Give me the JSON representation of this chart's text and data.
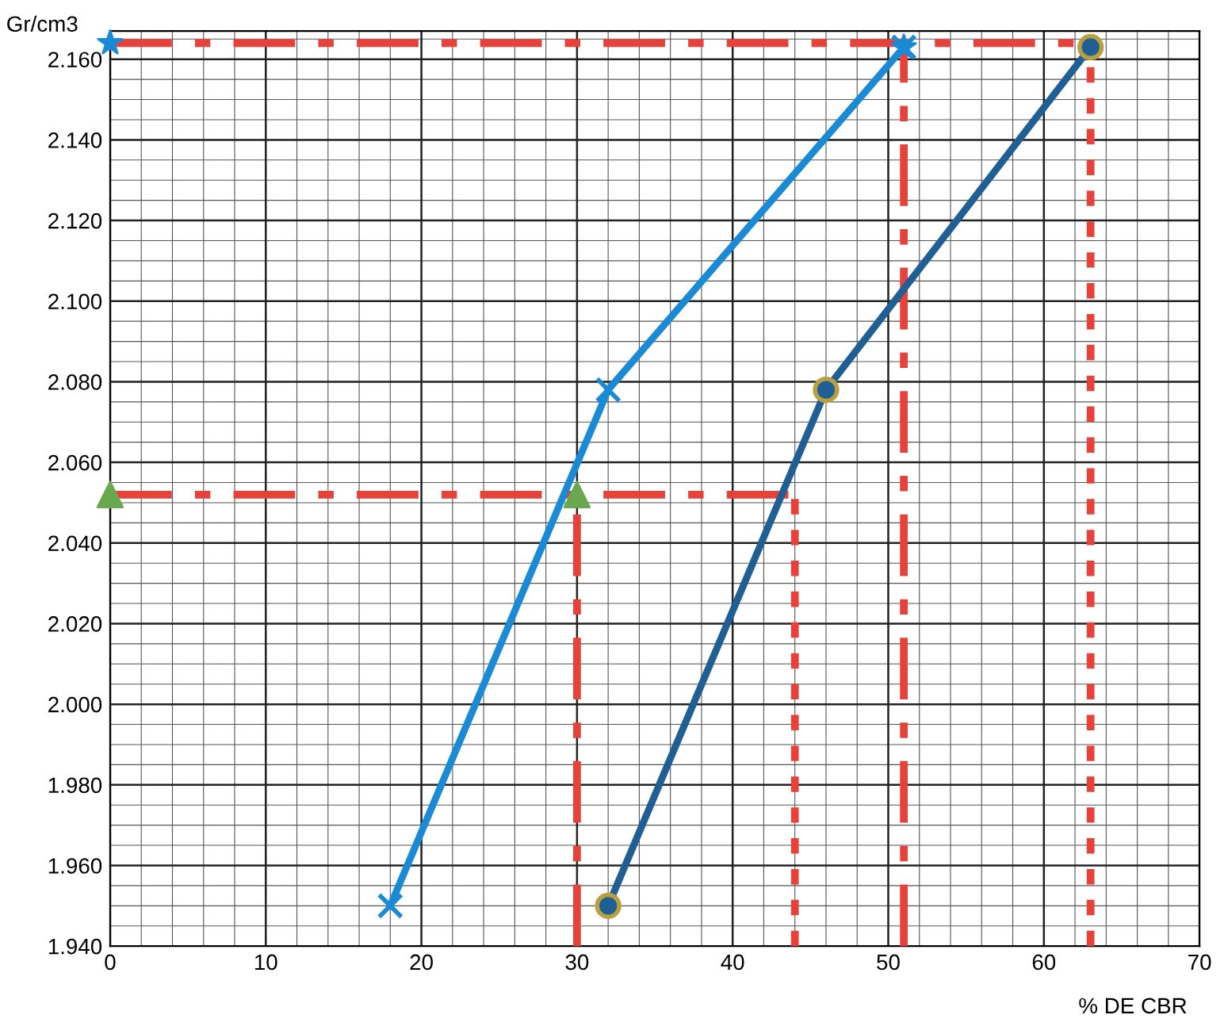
{
  "chart_data": {
    "type": "line",
    "ylabel": "Gr/cm3",
    "xlabel": "% DE CBR",
    "xlim": [
      0,
      70
    ],
    "xticks": [
      0,
      10,
      20,
      30,
      40,
      50,
      60,
      70
    ],
    "ylim": [
      1.94,
      2.167
    ],
    "yticks": [
      {
        "value": 1.94,
        "label": "1.940"
      },
      {
        "value": 1.96,
        "label": "1.960"
      },
      {
        "value": 1.98,
        "label": "1.980"
      },
      {
        "value": 2.0,
        "label": "2.000"
      },
      {
        "value": 2.02,
        "label": "2.020"
      },
      {
        "value": 2.04,
        "label": "2.040"
      },
      {
        "value": 2.06,
        "label": "2.060"
      },
      {
        "value": 2.08,
        "label": "2.080"
      },
      {
        "value": 2.1,
        "label": "2.100"
      },
      {
        "value": 2.12,
        "label": "2.120"
      },
      {
        "value": 2.14,
        "label": "2.140"
      },
      {
        "value": 2.16,
        "label": "2.160"
      }
    ],
    "grid": true,
    "series": [
      {
        "type": "line",
        "color": "#e8413a",
        "line_style": "dashed",
        "marker": "none",
        "x": [
          0,
          63
        ],
        "values": [
          2.164,
          2.164
        ]
      },
      {
        "type": "line",
        "color": "#e8413a",
        "line_style": "dashed",
        "marker": "none",
        "x": [
          51,
          51
        ],
        "values": [
          1.94,
          2.164
        ]
      },
      {
        "type": "line",
        "color": "#e8413a",
        "line_style": "dotted",
        "marker": "none",
        "x": [
          63,
          63
        ],
        "values": [
          1.94,
          2.164
        ]
      },
      {
        "type": "line",
        "color": "#e8413a",
        "line_style": "dashed",
        "marker": "none",
        "x": [
          0,
          44
        ],
        "values": [
          2.052,
          2.052
        ]
      },
      {
        "type": "line",
        "color": "#e8413a",
        "line_style": "dashed",
        "marker": "none",
        "x": [
          30,
          30
        ],
        "values": [
          1.94,
          2.052
        ]
      },
      {
        "type": "line",
        "color": "#e8413a",
        "line_style": "dotted",
        "marker": "none",
        "x": [
          44,
          44
        ],
        "values": [
          1.94,
          2.052
        ]
      },
      {
        "color": "#1a8ad4",
        "line_style": "solid",
        "marker": "cross",
        "x": [
          18,
          32,
          51
        ],
        "values": [
          1.95,
          2.078,
          2.163
        ]
      },
      {
        "color": "#1f5f94",
        "line_style": "solid",
        "marker": "circle",
        "x": [
          32,
          46,
          63
        ],
        "values": [
          1.95,
          2.078,
          2.163
        ]
      },
      {
        "type": "scatter",
        "color": "#1a8ad4",
        "marker": "star",
        "x": [
          0,
          51
        ],
        "values": [
          2.164,
          2.163
        ]
      },
      {
        "type": "scatter",
        "color": "#6aa84f",
        "marker": "triangle",
        "x": [
          0,
          30
        ],
        "values": [
          2.052,
          2.052
        ]
      }
    ]
  }
}
